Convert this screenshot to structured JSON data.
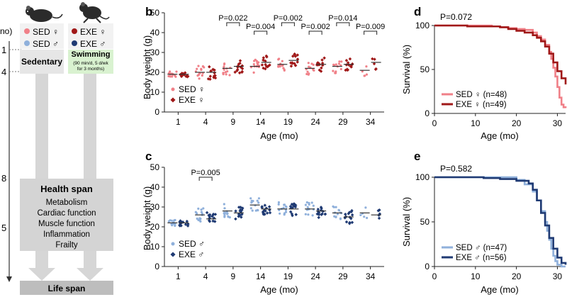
{
  "colors": {
    "sed_female": "#f08088",
    "exe_female": "#a01818",
    "sed_male": "#8fb0db",
    "exe_male": "#1f3a73",
    "gray_box": "#d9d9d9",
    "arrow": "#cfcfcf",
    "swim_bg": "#d9f2d0",
    "sedentary_bg": "#e6e6e6"
  },
  "diagram": {
    "axis_unit_fragment": "no)",
    "axis_ticks": [
      "1",
      "4",
      "8",
      "5"
    ],
    "sed_group": {
      "female": "SED ♀",
      "male": "SED ♂"
    },
    "exe_group": {
      "female": "EXE ♀",
      "male": "EXE ♂"
    },
    "sedentary_label": "Sedentary",
    "swimming_label": "Swimming",
    "swimming_detail_1": "(90 min/d, 5 d/wk",
    "swimming_detail_2": "for 3 months)",
    "health_span_title": "Health span",
    "health_span_items": [
      "Metabolism",
      "Cardiac function",
      "Muscle function",
      "Inflammation",
      "Frailty"
    ],
    "life_span_label": "Life span"
  },
  "chart_data": [
    {
      "panel": "b",
      "type": "scatter",
      "xlabel": "Age (mo)",
      "ylabel": "Body weight (g)",
      "categories": [
        "1",
        "4",
        "9",
        "14",
        "19",
        "24",
        "29",
        "34"
      ],
      "ylim": [
        0,
        50
      ],
      "yticks": [
        0,
        10,
        20,
        30,
        40,
        50
      ],
      "legend": [
        "SED ♀",
        "EXE ♀"
      ],
      "legend_position": "bottom-left",
      "series": [
        {
          "name": "SED ♀",
          "medians": [
            19,
            20,
            22,
            23,
            24,
            22,
            23,
            21
          ]
        },
        {
          "name": "EXE ♀",
          "medians": [
            19,
            20,
            23,
            25,
            26,
            24,
            24,
            25
          ]
        }
      ],
      "annotations": [
        {
          "category": "9",
          "label": "P=0.022",
          "level": 0
        },
        {
          "category": "14",
          "label": "P=0.004",
          "level": 1
        },
        {
          "category": "19",
          "label": "P=0.002",
          "level": 0
        },
        {
          "category": "24",
          "label": "P=0.002",
          "level": 1
        },
        {
          "category": "29",
          "label": "P=0.014",
          "level": 0
        },
        {
          "category": "34",
          "label": "P=0.009",
          "level": 1
        }
      ]
    },
    {
      "panel": "c",
      "type": "scatter",
      "xlabel": "Age (mo)",
      "ylabel": "Body weight (g)",
      "categories": [
        "1",
        "4",
        "9",
        "14",
        "19",
        "24",
        "29",
        "34"
      ],
      "ylim": [
        0,
        50
      ],
      "yticks": [
        0,
        10,
        20,
        30,
        40,
        50
      ],
      "legend": [
        "SED ♂",
        "EXE ♂"
      ],
      "legend_position": "bottom-left",
      "series": [
        {
          "name": "SED ♂",
          "medians": [
            22,
            26,
            28,
            31,
            29,
            29,
            27,
            27
          ]
        },
        {
          "name": "EXE ♂",
          "medians": [
            22,
            24,
            27,
            29,
            29,
            28,
            25,
            26
          ]
        }
      ],
      "annotations": [
        {
          "category": "4",
          "label": "P=0.005",
          "level": 0
        }
      ]
    },
    {
      "panel": "d",
      "type": "line",
      "xlabel": "Age (mo)",
      "ylabel": "Survival (%)",
      "xlim": [
        0,
        32
      ],
      "ylim": [
        0,
        100
      ],
      "xticks": [
        0,
        10,
        20,
        30
      ],
      "yticks": [
        0,
        50,
        100
      ],
      "p_value": "P=0.072",
      "series": [
        {
          "name": "SED ♀ (n=48)",
          "x": [
            0,
            12,
            14,
            16,
            18,
            20,
            22,
            24,
            25,
            26,
            27,
            28,
            28.5,
            29,
            29.5,
            30,
            30.5,
            31,
            31.5,
            32
          ],
          "y": [
            100,
            100,
            99,
            98,
            97,
            96,
            95,
            92,
            88,
            84,
            78,
            70,
            62,
            52,
            42,
            30,
            18,
            10,
            7,
            6
          ]
        },
        {
          "name": "EXE ♀ (n=49)",
          "x": [
            0,
            8,
            16,
            18,
            20,
            22,
            24,
            25,
            26,
            27,
            28,
            29,
            30,
            31,
            32
          ],
          "y": [
            100,
            99,
            98,
            96,
            94,
            92,
            89,
            86,
            82,
            76,
            68,
            58,
            48,
            40,
            33
          ]
        }
      ]
    },
    {
      "panel": "e",
      "type": "line",
      "xlabel": "Age (mo)",
      "ylabel": "Survival (%)",
      "xlim": [
        0,
        32
      ],
      "ylim": [
        0,
        100
      ],
      "xticks": [
        0,
        10,
        20,
        30
      ],
      "yticks": [
        0,
        50,
        100
      ],
      "p_value": "P=0.582",
      "series": [
        {
          "name": "SED ♂ (n=47)",
          "x": [
            0,
            18,
            20,
            22,
            24,
            25,
            26,
            27,
            27.5,
            28,
            28.5,
            29,
            29.5,
            30,
            31,
            32
          ],
          "y": [
            100,
            100,
            97,
            92,
            84,
            74,
            62,
            50,
            40,
            30,
            20,
            12,
            6,
            2,
            0,
            0
          ]
        },
        {
          "name": "EXE ♂ (n=56)",
          "x": [
            0,
            12,
            16,
            20,
            23,
            24,
            25,
            26,
            27,
            28,
            29,
            30,
            31,
            32
          ],
          "y": [
            100,
            99,
            98,
            96,
            93,
            86,
            74,
            60,
            46,
            32,
            20,
            10,
            4,
            2
          ]
        }
      ]
    }
  ],
  "panel_labels": {
    "b": "b",
    "c": "c",
    "d": "d",
    "e": "e"
  }
}
